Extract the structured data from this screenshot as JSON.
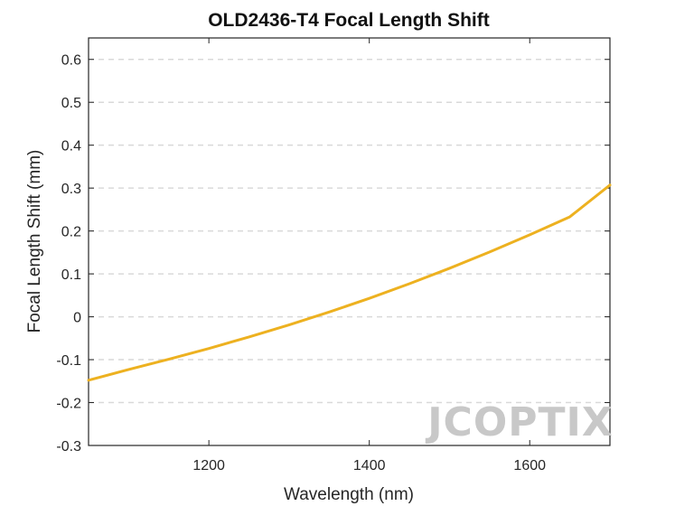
{
  "chart_data": {
    "type": "line",
    "title": "OLD2436-T4 Focal Length Shift",
    "xlabel": "Wavelength (nm)",
    "ylabel": "Focal Length Shift (mm)",
    "xlim": [
      1050,
      1700
    ],
    "ylim": [
      -0.3,
      0.65
    ],
    "xticks": [
      1200,
      1400,
      1600
    ],
    "yticks": [
      -0.3,
      -0.2,
      -0.1,
      0,
      0.1,
      0.2,
      0.3,
      0.4,
      0.5,
      0.6
    ],
    "ytick_labels": [
      "-0.3",
      "-0.2",
      "-0.1",
      "0",
      "0.1",
      "0.2",
      "0.3",
      "0.4",
      "0.5",
      "0.6"
    ],
    "grid": "horizontal dashed",
    "series": [
      {
        "color": "#EDB120",
        "x": [
          1050,
          1100,
          1150,
          1200,
          1250,
          1300,
          1350,
          1400,
          1450,
          1500,
          1550,
          1600,
          1650,
          1700
        ],
        "y": [
          -0.148,
          -0.123,
          -0.099,
          -0.074,
          -0.047,
          -0.019,
          0.011,
          0.043,
          0.077,
          0.113,
          0.151,
          0.191,
          0.233,
          0.307
        ]
      }
    ]
  },
  "watermark": "JCOPTIX",
  "colors": {
    "line": "#EDB120",
    "grid": "#d9d9d9",
    "axes": "#262626",
    "watermark": "#c8c8c8",
    "watermark_accent": "#f2c9a8"
  }
}
